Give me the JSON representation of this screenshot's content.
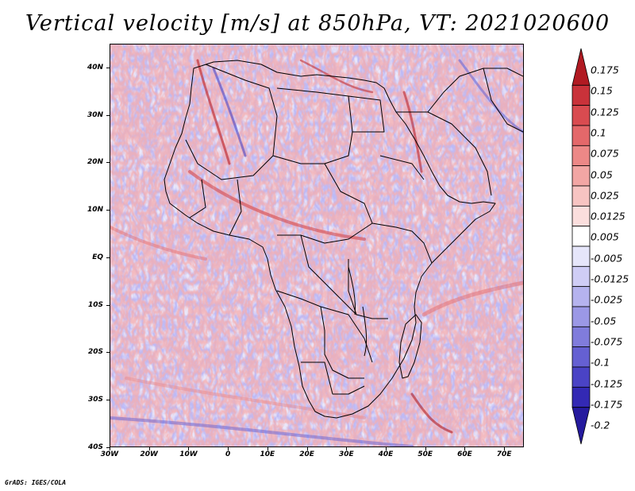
{
  "title": "Vertical velocity [m/s] at 850hPa, VT: 2021020600",
  "footer": "GrADS: IGES/COLA",
  "map": {
    "x_range_deg": [
      -30,
      75
    ],
    "y_range_deg": [
      -40,
      45
    ],
    "x_ticks": [
      {
        "label": "30W",
        "lon": -30
      },
      {
        "label": "20W",
        "lon": -20
      },
      {
        "label": "10W",
        "lon": -10
      },
      {
        "label": "0",
        "lon": 0
      },
      {
        "label": "10E",
        "lon": 10
      },
      {
        "label": "20E",
        "lon": 20
      },
      {
        "label": "30E",
        "lon": 30
      },
      {
        "label": "40E",
        "lon": 40
      },
      {
        "label": "50E",
        "lon": 50
      },
      {
        "label": "60E",
        "lon": 60
      },
      {
        "label": "70E",
        "lon": 70
      }
    ],
    "y_ticks": [
      {
        "label": "40N",
        "lat": 40
      },
      {
        "label": "30N",
        "lat": 30
      },
      {
        "label": "20N",
        "lat": 20
      },
      {
        "label": "10N",
        "lat": 10
      },
      {
        "label": "EQ",
        "lat": 0
      },
      {
        "label": "10S",
        "lat": -10
      },
      {
        "label": "20S",
        "lat": -20
      },
      {
        "label": "30S",
        "lat": -30
      },
      {
        "label": "40S",
        "lat": -40
      }
    ]
  },
  "colorbar": {
    "labels": [
      "0.175",
      "0.15",
      "0.125",
      "0.1",
      "0.075",
      "0.05",
      "0.025",
      "0.0125",
      "0.005",
      "-0.005",
      "-0.0125",
      "-0.025",
      "-0.05",
      "-0.075",
      "-0.1",
      "-0.125",
      "-0.175",
      "-0.2"
    ],
    "colors": [
      "#b11a22",
      "#c9323a",
      "#d94b50",
      "#e4686a",
      "#ec8887",
      "#f2a6a4",
      "#f7c4c2",
      "#fbdedd",
      "#ffffff",
      "#e6e6fa",
      "#cfcdf5",
      "#b5b3ee",
      "#9b98e6",
      "#807cdc",
      "#6560d2",
      "#4a43c5",
      "#3329b4",
      "#251a9e"
    ]
  }
}
